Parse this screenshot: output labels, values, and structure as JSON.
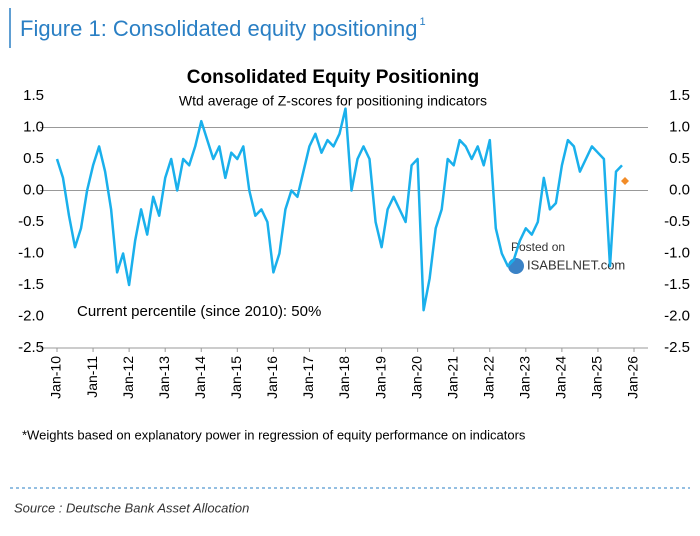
{
  "chart_data": {
    "type": "line",
    "figure_title": "Figure 1: Consolidated equity positioning",
    "figure_title_note": "1",
    "title": "Consolidated Equity Positioning",
    "subtitle": "Wtd average of Z-scores for positioning indicators",
    "annotation": "Current percentile (since 2010): 50%",
    "watermark": [
      "Posted on",
      "ISABELNET.com"
    ],
    "footnote": "*Weights based on explanatory power in regression of equity performance on indicators",
    "source": "Source : Deutsche Bank Asset Allocation",
    "x": [
      "2010-01",
      "2010-03",
      "2010-05",
      "2010-07",
      "2010-09",
      "2010-11",
      "2011-01",
      "2011-03",
      "2011-05",
      "2011-07",
      "2011-09",
      "2011-11",
      "2012-01",
      "2012-03",
      "2012-05",
      "2012-07",
      "2012-09",
      "2012-11",
      "2013-01",
      "2013-03",
      "2013-05",
      "2013-07",
      "2013-09",
      "2013-11",
      "2014-01",
      "2014-03",
      "2014-05",
      "2014-07",
      "2014-09",
      "2014-11",
      "2015-01",
      "2015-03",
      "2015-05",
      "2015-07",
      "2015-09",
      "2015-11",
      "2016-01",
      "2016-03",
      "2016-05",
      "2016-07",
      "2016-09",
      "2016-11",
      "2017-01",
      "2017-03",
      "2017-05",
      "2017-07",
      "2017-09",
      "2017-11",
      "2018-01",
      "2018-03",
      "2018-05",
      "2018-07",
      "2018-09",
      "2018-11",
      "2019-01",
      "2019-03",
      "2019-05",
      "2019-07",
      "2019-09",
      "2019-11",
      "2020-01",
      "2020-03",
      "2020-05",
      "2020-07",
      "2020-09",
      "2020-11",
      "2021-01",
      "2021-03",
      "2021-05",
      "2021-07",
      "2021-09",
      "2021-11",
      "2022-01",
      "2022-03",
      "2022-05",
      "2022-07",
      "2022-09",
      "2022-11",
      "2023-01",
      "2023-03",
      "2023-05",
      "2023-07",
      "2023-09",
      "2023-11",
      "2024-01",
      "2024-03",
      "2024-05",
      "2024-07",
      "2024-09",
      "2024-11",
      "2025-01",
      "2025-03",
      "2025-05",
      "2025-07",
      "2025-09"
    ],
    "series": [
      {
        "color": "#1ab0ec",
        "values": [
          0.5,
          0.2,
          -0.4,
          -0.9,
          -0.6,
          0.0,
          0.4,
          0.7,
          0.3,
          -0.3,
          -1.3,
          -1.0,
          -1.5,
          -0.8,
          -0.3,
          -0.7,
          -0.1,
          -0.4,
          0.2,
          0.5,
          0.0,
          0.5,
          0.4,
          0.7,
          1.1,
          0.8,
          0.5,
          0.7,
          0.2,
          0.6,
          0.5,
          0.7,
          0.0,
          -0.4,
          -0.3,
          -0.5,
          -1.3,
          -1.0,
          -0.3,
          0.0,
          -0.1,
          0.3,
          0.7,
          0.9,
          0.6,
          0.8,
          0.7,
          0.9,
          1.3,
          0.0,
          0.5,
          0.7,
          0.5,
          -0.5,
          -0.9,
          -0.3,
          -0.1,
          -0.3,
          -0.5,
          0.4,
          0.5,
          -1.9,
          -1.4,
          -0.6,
          -0.3,
          0.5,
          0.4,
          0.8,
          0.7,
          0.5,
          0.7,
          0.4,
          0.8,
          -0.6,
          -1.0,
          -1.2,
          -1.1,
          -0.8,
          -0.6,
          -0.7,
          -0.5,
          0.2,
          -0.3,
          -0.2,
          0.4,
          0.8,
          0.7,
          0.3,
          0.5,
          0.7,
          0.6,
          0.5,
          -1.2,
          0.3,
          0.4
        ]
      }
    ],
    "latest": {
      "x": "2025-10",
      "value": 0.15,
      "color": "#f28c28"
    },
    "xlim": [
      "2010-01",
      "2026-01"
    ],
    "xticks": [
      {
        "value": "2010-01",
        "label": "Jan-10"
      },
      {
        "value": "2011-01",
        "label": "Jan-11"
      },
      {
        "value": "2012-01",
        "label": "Jan-12"
      },
      {
        "value": "2013-01",
        "label": "Jan-13"
      },
      {
        "value": "2014-01",
        "label": "Jan-14"
      },
      {
        "value": "2015-01",
        "label": "Jan-15"
      },
      {
        "value": "2016-01",
        "label": "Jan-16"
      },
      {
        "value": "2017-01",
        "label": "Jan-17"
      },
      {
        "value": "2018-01",
        "label": "Jan-18"
      },
      {
        "value": "2019-01",
        "label": "Jan-19"
      },
      {
        "value": "2020-01",
        "label": "Jan-20"
      },
      {
        "value": "2021-01",
        "label": "Jan-21"
      },
      {
        "value": "2022-01",
        "label": "Jan-22"
      },
      {
        "value": "2023-01",
        "label": "Jan-23"
      },
      {
        "value": "2024-01",
        "label": "Jan-24"
      },
      {
        "value": "2025-01",
        "label": "Jan-25"
      },
      {
        "value": "2026-01",
        "label": "Jan-26"
      }
    ],
    "ylim": [
      -2.5,
      1.5
    ],
    "yticks": [
      1.5,
      {
        "value": 1,
        "label": "1.0"
      },
      0.5,
      {
        "value": 0,
        "label": "0.0"
      },
      -0.5,
      {
        "value": -1,
        "label": "-1.0"
      },
      -1.5,
      {
        "value": -2,
        "label": "-2.0"
      },
      -2.5
    ],
    "y2lim": [
      -2.5,
      1.5
    ],
    "y2ticks": [
      1.5,
      {
        "value": 1,
        "label": "1.0"
      },
      0.5,
      {
        "value": 0,
        "label": "0.0"
      },
      -0.5,
      {
        "value": -1,
        "label": "-1.0"
      },
      -1.5,
      {
        "value": -2,
        "label": "-2.0"
      },
      -2.5
    ],
    "hlines": [
      1,
      0
    ]
  }
}
